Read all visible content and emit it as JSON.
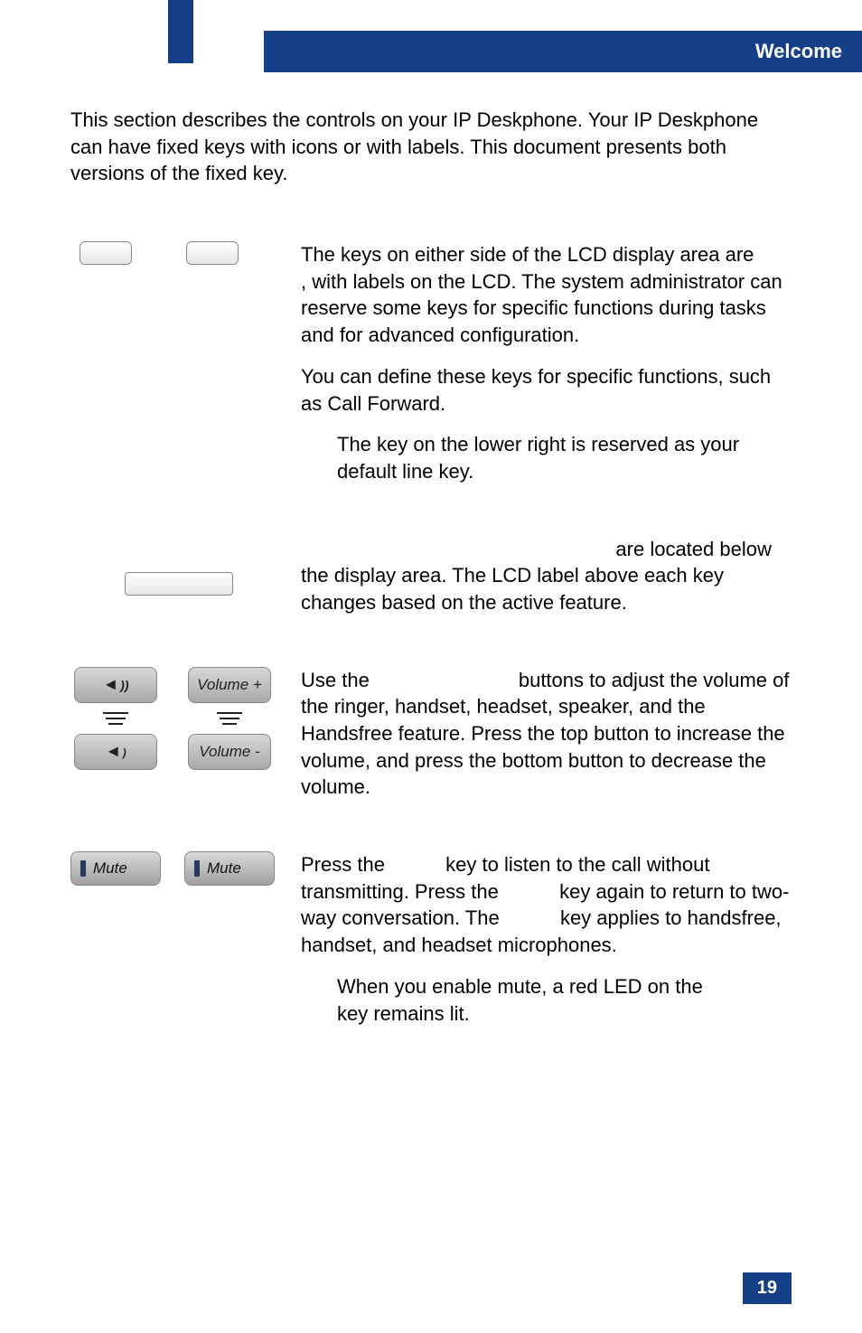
{
  "header": {
    "section": "Welcome"
  },
  "intro": "This section describes the controls on your IP Deskphone. Your IP Deskphone can have fixed keys with icons or with labels. This document presents both versions of the fixed key.",
  "softkeys": {
    "p1": "The keys on either side of the LCD display area are                                         , with labels on the LCD. The system administrator can reserve some keys for specific functions during tasks and for advanced configuration.",
    "p2": "You can define these keys for specific functions, such as Call Forward.",
    "note": "The key on the lower right is reserved as your default line key."
  },
  "contextkeys": {
    "p1": "                                                         are located below the display area. The LCD label above each key changes based on the active feature."
  },
  "volume": {
    "btn_up_label": "Volume +",
    "btn_down_label": "Volume -",
    "p1": "Use the                           buttons to adjust the volume of the ringer, handset, headset, speaker, and the Handsfree feature. Press the top button to increase the volume, and press the bottom button to decrease the volume."
  },
  "mute": {
    "btn_label": "Mute",
    "p1": "Press the           key to listen to the call without transmitting. Press the           key again to return to two-way conversation. The           key applies to handsfree, handset, and headset microphones.",
    "note": "When you enable mute, a red LED on the           key remains lit."
  },
  "page_number": "19",
  "colors": {
    "brand_blue": "#153f87"
  }
}
